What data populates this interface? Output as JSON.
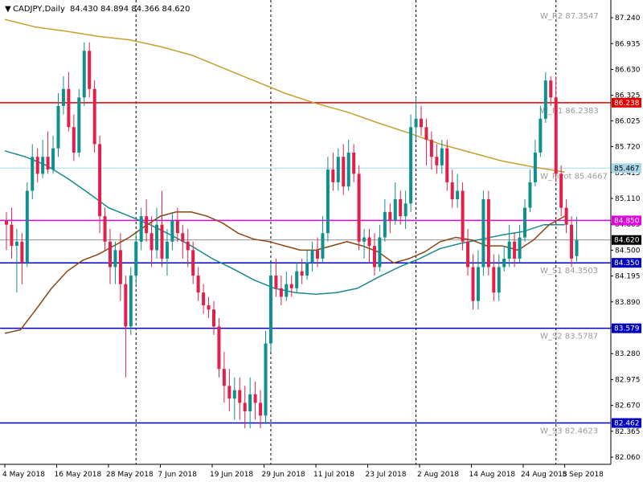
{
  "header": {
    "symbol": "CADJPY,Daily",
    "ohlc": "84.430 84.894 84.366 84.620",
    "arrow": "▼"
  },
  "colors": {
    "background": "#ffffff",
    "bull": "#0f8f8f",
    "bear": "#e0204a",
    "ma_fast": "#8b4513",
    "ma_mid": "#1a8a8a",
    "ma_slow": "#c8a030",
    "red_line": "#e00000",
    "magenta_line": "#e000e0",
    "blue_line": "#0000c0",
    "lightblue_line": "#a8d8e8",
    "current_line": "#808080",
    "grid_dash": "#000000"
  },
  "chart_data": {
    "type": "candlestick",
    "title": "CADJPY,Daily",
    "ylim": [
      81.975,
      87.43
    ],
    "y_ticks": [
      "87.240",
      "86.935",
      "86.630",
      "86.325",
      "86.025",
      "85.720",
      "85.415",
      "85.110",
      "84.805",
      "84.500",
      "84.195",
      "83.890",
      "83.585",
      "83.280",
      "82.975",
      "82.670",
      "82.365",
      "82.060"
    ],
    "x_ticks": [
      {
        "i": 0,
        "label": "4 May 2018"
      },
      {
        "i": 10,
        "label": "16 May 2018"
      },
      {
        "i": 20,
        "label": "28 May 2018"
      },
      {
        "i": 30,
        "label": "7 Jun 2018"
      },
      {
        "i": 40,
        "label": "19 Jun 2018"
      },
      {
        "i": 50,
        "label": "29 Jun 2018"
      },
      {
        "i": 60,
        "label": "11 Jul 2018"
      },
      {
        "i": 70,
        "label": "23 Jul 2018"
      },
      {
        "i": 80,
        "label": "2 Aug 2018"
      },
      {
        "i": 90,
        "label": "14 Aug 2018"
      },
      {
        "i": 100,
        "label": "24 Aug 2018"
      },
      {
        "i": 108,
        "label": "5 Sep 2018"
      }
    ],
    "period_separators": [
      25,
      51,
      79,
      106
    ],
    "candles": [
      [
        84.85,
        84.8,
        84.95,
        84.5
      ],
      [
        84.8,
        84.55,
        85.0,
        84.4
      ],
      [
        84.55,
        84.6,
        84.75,
        84.0
      ],
      [
        84.6,
        84.35,
        84.7,
        84.1
      ],
      [
        84.35,
        85.2,
        85.3,
        84.3
      ],
      [
        85.2,
        85.6,
        85.75,
        85.1
      ],
      [
        85.6,
        85.4,
        85.7,
        85.3
      ],
      [
        85.4,
        85.6,
        85.8,
        85.35
      ],
      [
        85.6,
        85.45,
        85.9,
        85.4
      ],
      [
        85.45,
        85.7,
        85.85,
        85.4
      ],
      [
        85.7,
        86.2,
        86.35,
        85.6
      ],
      [
        86.2,
        86.4,
        86.55,
        86.1
      ],
      [
        86.4,
        85.95,
        86.6,
        85.9
      ],
      [
        85.95,
        85.65,
        86.1,
        85.55
      ],
      [
        85.65,
        86.3,
        86.4,
        85.6
      ],
      [
        86.3,
        86.85,
        86.95,
        86.2
      ],
      [
        86.85,
        86.4,
        86.95,
        86.3
      ],
      [
        86.4,
        85.75,
        86.5,
        85.65
      ],
      [
        85.75,
        84.9,
        85.85,
        84.7
      ],
      [
        84.9,
        84.6,
        85.0,
        84.5
      ],
      [
        84.6,
        84.3,
        84.75,
        84.1
      ],
      [
        84.3,
        84.5,
        84.6,
        84.1
      ],
      [
        84.5,
        84.1,
        84.7,
        83.9
      ],
      [
        84.1,
        83.6,
        84.2,
        83.0
      ],
      [
        83.6,
        84.2,
        84.3,
        83.5
      ],
      [
        84.2,
        84.6,
        84.7,
        84.1
      ],
      [
        84.6,
        84.9,
        85.0,
        84.5
      ],
      [
        84.9,
        84.7,
        85.1,
        84.6
      ],
      [
        84.7,
        84.5,
        84.9,
        84.3
      ],
      [
        84.5,
        84.8,
        85.0,
        84.4
      ],
      [
        84.8,
        84.4,
        85.2,
        84.3
      ],
      [
        84.4,
        84.6,
        84.75,
        84.2
      ],
      [
        84.6,
        84.85,
        84.95,
        84.5
      ],
      [
        84.85,
        84.7,
        85.0,
        84.6
      ],
      [
        84.7,
        84.6,
        84.8,
        84.4
      ],
      [
        84.6,
        84.5,
        84.75,
        84.3
      ],
      [
        84.5,
        84.2,
        84.6,
        84.1
      ],
      [
        84.2,
        84.0,
        84.3,
        83.9
      ],
      [
        84.0,
        83.85,
        84.1,
        83.75
      ],
      [
        83.85,
        83.8,
        83.95,
        83.7
      ],
      [
        83.8,
        83.6,
        83.9,
        83.5
      ],
      [
        83.6,
        83.1,
        83.7,
        83.0
      ],
      [
        83.1,
        82.9,
        83.3,
        82.7
      ],
      [
        82.9,
        82.75,
        83.1,
        82.6
      ],
      [
        82.75,
        82.85,
        83.0,
        82.5
      ],
      [
        82.85,
        82.7,
        83.0,
        82.5
      ],
      [
        82.7,
        82.6,
        82.9,
        82.4
      ],
      [
        82.6,
        82.8,
        83.0,
        82.4
      ],
      [
        82.8,
        82.7,
        82.95,
        82.5
      ],
      [
        82.7,
        82.55,
        82.85,
        82.4
      ],
      [
        82.55,
        83.4,
        83.55,
        82.45
      ],
      [
        83.4,
        84.2,
        84.35,
        83.3
      ],
      [
        84.2,
        84.05,
        84.4,
        83.95
      ],
      [
        84.05,
        83.95,
        84.2,
        83.85
      ],
      [
        83.95,
        84.1,
        84.25,
        83.9
      ],
      [
        84.1,
        84.05,
        84.2,
        83.95
      ],
      [
        84.05,
        84.25,
        84.35,
        84.0
      ],
      [
        84.25,
        84.2,
        84.4,
        84.1
      ],
      [
        84.2,
        84.35,
        84.5,
        84.15
      ],
      [
        84.35,
        84.5,
        84.6,
        84.25
      ],
      [
        84.5,
        84.4,
        84.65,
        84.3
      ],
      [
        84.4,
        84.7,
        84.9,
        84.35
      ],
      [
        84.7,
        85.45,
        85.6,
        84.6
      ],
      [
        85.45,
        85.3,
        85.65,
        85.2
      ],
      [
        85.3,
        85.6,
        85.7,
        85.2
      ],
      [
        85.6,
        85.25,
        85.75,
        85.15
      ],
      [
        85.25,
        85.65,
        85.8,
        85.2
      ],
      [
        85.65,
        85.4,
        85.75,
        85.3
      ],
      [
        85.4,
        84.6,
        85.5,
        84.5
      ],
      [
        84.6,
        84.65,
        84.75,
        84.4
      ],
      [
        84.65,
        84.55,
        84.75,
        84.35
      ],
      [
        84.55,
        84.3,
        84.7,
        84.2
      ],
      [
        84.3,
        84.65,
        84.8,
        84.25
      ],
      [
        84.65,
        84.95,
        85.1,
        84.6
      ],
      [
        84.95,
        84.85,
        85.05,
        84.7
      ],
      [
        84.85,
        85.1,
        85.3,
        84.8
      ],
      [
        85.1,
        84.9,
        85.2,
        84.8
      ],
      [
        84.9,
        85.05,
        85.2,
        84.75
      ],
      [
        85.05,
        85.95,
        86.1,
        84.95
      ],
      [
        85.95,
        86.05,
        86.3,
        85.8
      ],
      [
        86.05,
        85.95,
        86.2,
        85.85
      ],
      [
        85.95,
        85.8,
        86.05,
        85.5
      ],
      [
        85.8,
        85.6,
        85.9,
        85.45
      ],
      [
        85.6,
        85.5,
        85.75,
        85.4
      ],
      [
        85.5,
        85.7,
        85.8,
        85.4
      ],
      [
        85.7,
        85.3,
        85.8,
        85.2
      ],
      [
        85.3,
        85.1,
        85.45,
        85.0
      ],
      [
        85.1,
        85.2,
        85.4,
        85.0
      ],
      [
        85.2,
        84.6,
        85.3,
        84.5
      ],
      [
        84.6,
        84.3,
        84.75,
        84.2
      ],
      [
        84.3,
        83.9,
        84.45,
        83.8
      ],
      [
        83.9,
        84.3,
        84.5,
        83.8
      ],
      [
        84.3,
        85.1,
        85.2,
        84.2
      ],
      [
        85.1,
        84.3,
        85.2,
        84.2
      ],
      [
        84.3,
        84.0,
        84.45,
        83.9
      ],
      [
        84.0,
        84.3,
        84.45,
        83.9
      ],
      [
        84.3,
        84.4,
        84.55,
        84.25
      ],
      [
        84.4,
        84.6,
        84.8,
        84.3
      ],
      [
        84.6,
        84.4,
        84.7,
        84.3
      ],
      [
        84.4,
        84.65,
        84.8,
        84.35
      ],
      [
        84.65,
        85.0,
        85.1,
        84.6
      ],
      [
        85.0,
        85.3,
        85.45,
        84.95
      ],
      [
        85.3,
        85.65,
        85.8,
        85.25
      ],
      [
        85.65,
        86.05,
        86.2,
        85.6
      ],
      [
        86.05,
        86.5,
        86.6,
        86.0
      ],
      [
        86.5,
        86.3,
        86.55,
        86.2
      ],
      [
        86.3,
        85.4,
        86.55,
        85.3
      ],
      [
        85.4,
        85.0,
        85.5,
        84.9
      ],
      [
        85.0,
        84.8,
        85.1,
        84.7
      ],
      [
        84.8,
        84.4,
        84.9,
        84.3
      ],
      [
        84.43,
        84.62,
        84.894,
        84.366
      ]
    ],
    "ma_fast": [
      [
        0,
        83.52
      ],
      [
        3,
        83.56
      ],
      [
        6,
        83.8
      ],
      [
        9,
        84.05
      ],
      [
        12,
        84.25
      ],
      [
        15,
        84.38
      ],
      [
        18,
        84.45
      ],
      [
        21,
        84.55
      ],
      [
        24,
        84.65
      ],
      [
        27,
        84.78
      ],
      [
        30,
        84.9
      ],
      [
        33,
        84.95
      ],
      [
        36,
        84.95
      ],
      [
        39,
        84.9
      ],
      [
        42,
        84.82
      ],
      [
        45,
        84.7
      ],
      [
        48,
        84.63
      ],
      [
        51,
        84.6
      ],
      [
        54,
        84.55
      ],
      [
        57,
        84.5
      ],
      [
        60,
        84.5
      ],
      [
        63,
        84.55
      ],
      [
        66,
        84.6
      ],
      [
        69,
        84.55
      ],
      [
        72,
        84.48
      ],
      [
        75,
        84.35
      ],
      [
        78,
        84.4
      ],
      [
        81,
        84.48
      ],
      [
        84,
        84.6
      ],
      [
        87,
        84.65
      ],
      [
        90,
        84.62
      ],
      [
        93,
        84.55
      ],
      [
        96,
        84.55
      ],
      [
        99,
        84.5
      ],
      [
        102,
        84.62
      ],
      [
        105,
        84.8
      ],
      [
        108,
        84.9
      ]
    ],
    "ma_mid": [
      [
        0,
        85.67
      ],
      [
        4,
        85.6
      ],
      [
        8,
        85.5
      ],
      [
        12,
        85.35
      ],
      [
        16,
        85.18
      ],
      [
        20,
        85.0
      ],
      [
        24,
        84.9
      ],
      [
        28,
        84.8
      ],
      [
        32,
        84.68
      ],
      [
        36,
        84.55
      ],
      [
        40,
        84.4
      ],
      [
        44,
        84.28
      ],
      [
        48,
        84.15
      ],
      [
        52,
        84.05
      ],
      [
        56,
        84.0
      ],
      [
        60,
        83.98
      ],
      [
        64,
        84.0
      ],
      [
        68,
        84.05
      ],
      [
        72,
        84.18
      ],
      [
        76,
        84.3
      ],
      [
        80,
        84.4
      ],
      [
        84,
        84.52
      ],
      [
        88,
        84.58
      ],
      [
        92,
        84.63
      ],
      [
        96,
        84.68
      ],
      [
        100,
        84.72
      ],
      [
        104,
        84.8
      ],
      [
        108,
        84.8
      ]
    ],
    "ma_slow": [
      [
        0,
        87.22
      ],
      [
        6,
        87.13
      ],
      [
        12,
        87.08
      ],
      [
        18,
        87.02
      ],
      [
        24,
        86.98
      ],
      [
        30,
        86.9
      ],
      [
        36,
        86.8
      ],
      [
        42,
        86.65
      ],
      [
        48,
        86.5
      ],
      [
        54,
        86.35
      ],
      [
        60,
        86.23
      ],
      [
        66,
        86.13
      ],
      [
        72,
        86.0
      ],
      [
        78,
        85.88
      ],
      [
        84,
        85.75
      ],
      [
        90,
        85.65
      ],
      [
        96,
        85.55
      ],
      [
        102,
        85.48
      ],
      [
        108,
        85.42
      ]
    ],
    "levels": [
      {
        "name": "W_R2",
        "label": "W_R2 87.3547",
        "value": 87.3547,
        "line": false,
        "color": "#c8c8c8"
      },
      {
        "name": "W_R1",
        "label": "W_R1 86.2383",
        "value": 86.2383,
        "line": true,
        "color": "#e00000",
        "tag": "86.238"
      },
      {
        "name": "W_Pivot",
        "label": "W_Pivot 85.4667",
        "value": 85.4667,
        "line": true,
        "color": "#a8d8e8",
        "tag": "85.467"
      },
      {
        "name": "magenta",
        "label": "",
        "value": 84.85,
        "line": true,
        "color": "#e000e0",
        "tag": "84.850"
      },
      {
        "name": "W_S1",
        "label": "W_S1 84.3503",
        "value": 84.3503,
        "line": true,
        "color": "#0000c0",
        "tag": "84.350"
      },
      {
        "name": "W_S2",
        "label": "W_S2 83.5787",
        "value": 83.5787,
        "line": true,
        "color": "#0000c0",
        "tag": "83.579"
      },
      {
        "name": "W_S3",
        "label": "W_S3 82.4623",
        "value": 82.4623,
        "line": true,
        "color": "#0000c0",
        "tag": "82.462"
      }
    ],
    "current_price": {
      "value": 84.62,
      "tag": "84.620"
    },
    "grid": false
  }
}
